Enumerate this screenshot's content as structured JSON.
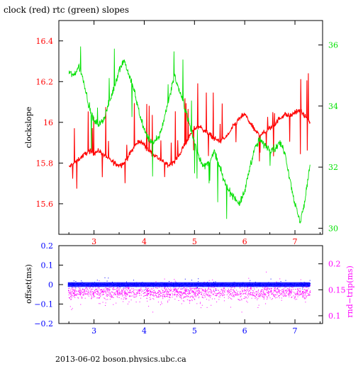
{
  "title": "clock (red) rtc (green) slopes",
  "footer": "2013-06-02  boson.physics.ubc.ca",
  "colors": {
    "clock": "#ff0000",
    "rtc": "#00e000",
    "offset": "#0000ff",
    "roundtrip": "#ff00ff",
    "axis": "#000000"
  },
  "chart_data": [
    {
      "type": "line",
      "ylabel": "clockslope",
      "ylabel_right": "",
      "xlim": [
        2.3,
        7.55
      ],
      "ylim": [
        15.45,
        16.5
      ],
      "y2lim": [
        29.8,
        36.8
      ],
      "xticks": [
        3,
        4,
        5,
        6,
        7
      ],
      "yticks": [
        15.6,
        15.8,
        16,
        16.2,
        16.4
      ],
      "y2ticks": [
        30,
        32,
        34,
        36
      ],
      "series": [
        {
          "name": "clock",
          "axis": "left",
          "x": [
            2.5,
            2.6,
            2.7,
            2.8,
            2.9,
            3.0,
            3.1,
            3.2,
            3.3,
            3.4,
            3.5,
            3.6,
            3.7,
            3.8,
            3.9,
            4.0,
            4.1,
            4.2,
            4.3,
            4.4,
            4.5,
            4.6,
            4.7,
            4.8,
            4.9,
            5.0,
            5.1,
            5.2,
            5.3,
            5.4,
            5.5,
            5.6,
            5.7,
            5.8,
            5.9,
            6.0,
            6.1,
            6.2,
            6.3,
            6.4,
            6.5,
            6.6,
            6.7,
            6.8,
            6.9,
            7.0,
            7.1,
            7.2,
            7.3
          ],
          "values": [
            15.78,
            15.8,
            15.82,
            15.84,
            15.86,
            15.85,
            15.86,
            15.84,
            15.82,
            15.8,
            15.79,
            15.8,
            15.84,
            15.88,
            15.91,
            15.89,
            15.86,
            15.84,
            15.82,
            15.8,
            15.79,
            15.81,
            15.84,
            15.89,
            15.93,
            15.97,
            15.98,
            15.96,
            15.94,
            15.92,
            15.91,
            15.92,
            15.95,
            15.99,
            16.02,
            16.04,
            16.0,
            15.96,
            15.94,
            15.95,
            15.97,
            15.99,
            16.02,
            16.04,
            16.03,
            16.05,
            16.06,
            16.03,
            16.0
          ]
        },
        {
          "name": "rtc",
          "axis": "right",
          "x": [
            2.5,
            2.6,
            2.7,
            2.8,
            2.9,
            3.0,
            3.1,
            3.2,
            3.3,
            3.4,
            3.5,
            3.6,
            3.7,
            3.8,
            3.9,
            4.0,
            4.1,
            4.2,
            4.3,
            4.4,
            4.5,
            4.6,
            4.7,
            4.8,
            4.9,
            5.0,
            5.1,
            5.2,
            5.3,
            5.4,
            5.5,
            5.6,
            5.7,
            5.8,
            5.9,
            6.0,
            6.1,
            6.2,
            6.3,
            6.4,
            6.5,
            6.6,
            6.7,
            6.8,
            6.9,
            7.0,
            7.1,
            7.2,
            7.3
          ],
          "values": [
            35.1,
            35.0,
            35.3,
            34.8,
            34.0,
            33.5,
            33.4,
            33.6,
            34.1,
            34.6,
            35.2,
            35.5,
            35.0,
            34.5,
            33.8,
            33.2,
            32.9,
            32.8,
            33.0,
            33.6,
            34.3,
            35.0,
            34.5,
            34.0,
            33.4,
            32.8,
            32.3,
            32.0,
            32.2,
            32.5,
            32.0,
            31.5,
            31.2,
            31.0,
            30.8,
            31.2,
            32.0,
            32.6,
            32.9,
            32.7,
            32.6,
            32.6,
            32.8,
            32.5,
            31.6,
            30.8,
            30.2,
            30.9,
            32.1
          ]
        }
      ]
    },
    {
      "type": "scatter",
      "ylabel": "offset(ms)",
      "ylabel_right": "rnd−trip(ms)",
      "xlim": [
        2.3,
        7.55
      ],
      "ylim": [
        -0.2,
        0.2
      ],
      "y2lim": [
        0.085,
        0.235
      ],
      "xticks": [
        3,
        4,
        5,
        6,
        7
      ],
      "yticks": [
        -0.2,
        -0.1,
        0,
        0.1,
        0.2
      ],
      "ytick_labels": [
        "−0.2",
        "−0.1",
        "0",
        "0.1",
        "0.2"
      ],
      "y2ticks": [
        0.1,
        0.15,
        0.2
      ],
      "series": [
        {
          "name": "offset",
          "axis": "left",
          "x_range": [
            2.48,
            7.3
          ],
          "center": 0.0,
          "spread": 0.012,
          "points": 1400
        },
        {
          "name": "rnd-trip",
          "axis": "right",
          "x_range": [
            2.48,
            7.3
          ],
          "center": 0.145,
          "spread": 0.012,
          "points": 1700
        }
      ]
    }
  ]
}
